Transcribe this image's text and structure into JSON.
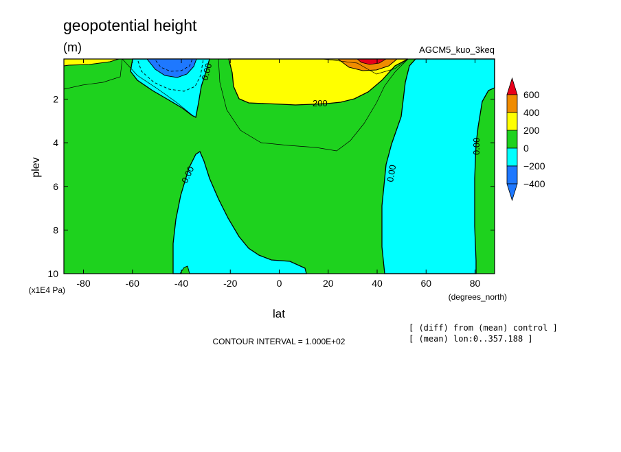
{
  "header": {
    "title": "geopotential height",
    "units": "(m)",
    "dataset": "AGCM5_kuo_3keq"
  },
  "footer": {
    "contour_interval": "CONTOUR INTERVAL = 1.000E+02",
    "diff_note": "[ (diff) from (mean) control ]",
    "mean_note": "[ (mean) lon:0..357.188 ]"
  },
  "colors": {
    "red": "#e8001a",
    "orange": "#f08c00",
    "yellow": "#ffff00",
    "green": "#1ed21e",
    "cyan": "#00ffff",
    "blue": "#1e78ff",
    "contour": "#000000"
  },
  "chart_data": {
    "type": "heatmap",
    "title": "geopotential height",
    "subtitle": "(m)",
    "xlabel": "lat",
    "xunits": "(degrees_north)",
    "ylabel": "plev",
    "yunits": "(x1E4 Pa)",
    "xlim": [
      -88,
      88
    ],
    "ylim": [
      10,
      0.16
    ],
    "yaxis_inverted": true,
    "xticks": [
      "-80",
      "-60",
      "-40",
      "-20",
      "0",
      "20",
      "40",
      "60",
      "80"
    ],
    "xtick_values": [
      -80,
      -60,
      -40,
      -20,
      0,
      20,
      40,
      60,
      80
    ],
    "yticks": [
      "2",
      "4",
      "6",
      "8",
      "10"
    ],
    "ytick_values": [
      2,
      4,
      6,
      8,
      10
    ],
    "contour_levels": [
      -400,
      -300,
      -200,
      -100,
      0,
      100,
      200,
      300,
      400
    ],
    "contour_labels": [
      "0.00",
      "0.00",
      "0.00",
      "0.00",
      "200"
    ],
    "colorbar": {
      "labels": [
        "600",
        "400",
        "200",
        "0",
        "−200",
        "−400"
      ],
      "bins": [
        {
          "range": ">600",
          "color": "#e8001a"
        },
        {
          "range": "400 to 600",
          "color": "#f08c00"
        },
        {
          "range": "200 to 400",
          "color": "#ffff00"
        },
        {
          "range": "0 to 200",
          "color": "#1ed21e"
        },
        {
          "range": "-200 to 0",
          "color": "#00ffff"
        },
        {
          "range": "-400 to -200",
          "color": "#1e78ff"
        },
        {
          "range": "<-400",
          "color": "#1e78ff"
        }
      ]
    },
    "regions": [
      {
        "value_range": "-200 to 0",
        "lat_range": [
          -60,
          -31
        ],
        "plev_range": [
          0.16,
          2.8
        ],
        "note": "upper-level negative anomaly, min below -400 near lat -40"
      },
      {
        "value_range": "200 to 400",
        "lat_range": [
          -23,
          55
        ],
        "plev_range": [
          0.16,
          2.3
        ],
        "note": "upper-level positive anomaly, max above 400 near lat 40"
      },
      {
        "value_range": "-200 to 0",
        "lat_range": [
          -47,
          10
        ],
        "plev_range": [
          4.3,
          10
        ],
        "note": "lower-level negative region"
      },
      {
        "value_range": "-200 to 0",
        "lat_range": [
          45,
          88
        ],
        "plev_range": [
          0.16,
          10
        ],
        "note": "negative region north of 45N"
      },
      {
        "value_range": "0 to 200",
        "lat_range": [
          -88,
          88
        ],
        "plev_range": [
          0.16,
          10
        ],
        "note": "background"
      }
    ],
    "grid": false,
    "legend": "right"
  }
}
